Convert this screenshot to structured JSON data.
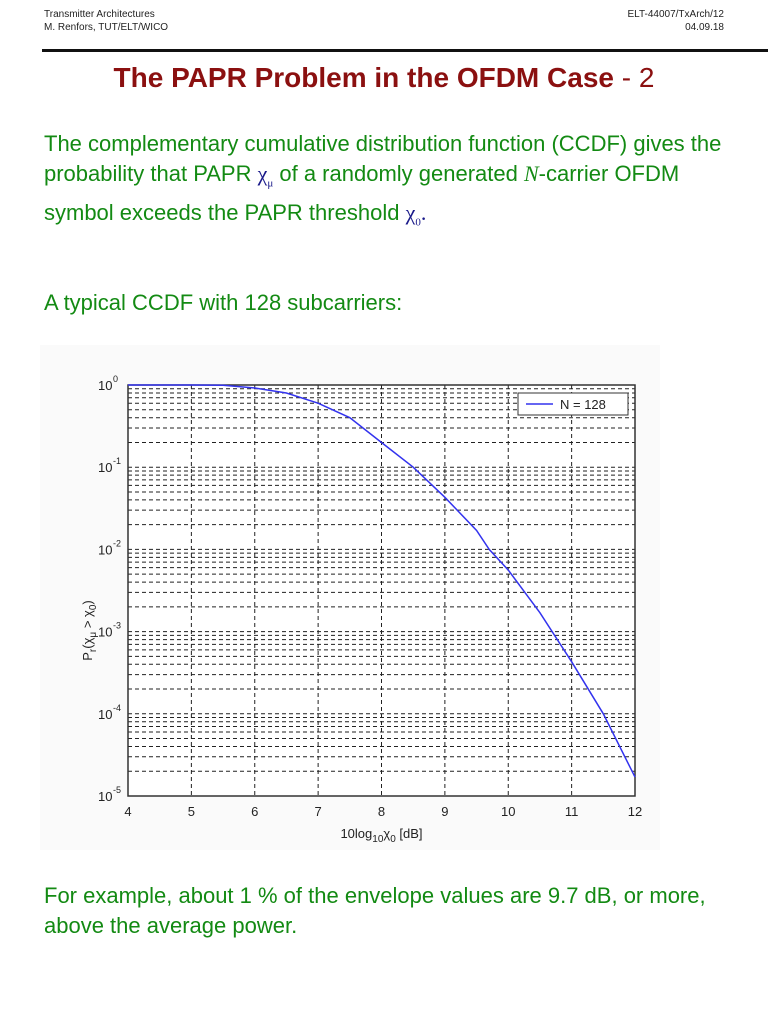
{
  "header": {
    "course_title": "Transmitter Architectures",
    "author": "M. Renfors, TUT/ELT/WICO",
    "slide_id": "ELT-44007/TxArch/12",
    "date": "04.09.18"
  },
  "slide": {
    "title": "The PAPR Problem in the OFDM Case",
    "title_suffix": "- 2",
    "paragraph1": {
      "part1": "The complementary cumulative distribution function (CCDF) gives the probability that PAPR ",
      "symbol_chi": "χ",
      "symbol_mu": "μ",
      "part2": " of a randomly generated ",
      "symbol_N": "N",
      "part3": "-carrier OFDM symbol exceeds the PAPR threshold ",
      "symbol_0": "0",
      "part4": "."
    },
    "paragraph2": "A typical CCDF with 128 subcarriers:",
    "paragraph3": "For example, about 1 % of the envelope values are 9.7 dB, or more, above the average power."
  },
  "chart_data": {
    "type": "line",
    "title": "",
    "xlabel": "10log10 χ0 [dB]",
    "ylabel": "Pr(χμ > χ0)",
    "x_ticks": [
      "4",
      "5",
      "6",
      "7",
      "8",
      "9",
      "10",
      "11",
      "12"
    ],
    "y_ticks": [
      "10^0",
      "10^-1",
      "10^-2",
      "10^-3",
      "10^-4",
      "10^-5"
    ],
    "xlim": [
      4,
      12
    ],
    "ylim": [
      1e-05,
      1
    ],
    "yscale": "log",
    "grid": true,
    "legend_position": "upper right",
    "series": [
      {
        "name": "N = 128",
        "color": "#3333ee",
        "x": [
          4,
          5,
          5.5,
          6,
          6.5,
          7,
          7.5,
          8,
          8.5,
          9,
          9.5,
          9.7,
          10,
          10.5,
          11,
          11.5,
          12
        ],
        "y": [
          1.0,
          1.0,
          0.995,
          0.92,
          0.8,
          0.6,
          0.4,
          0.2,
          0.1,
          0.043,
          0.017,
          0.01,
          0.0056,
          0.0017,
          0.00043,
          0.0001,
          1.7e-05
        ]
      }
    ]
  }
}
